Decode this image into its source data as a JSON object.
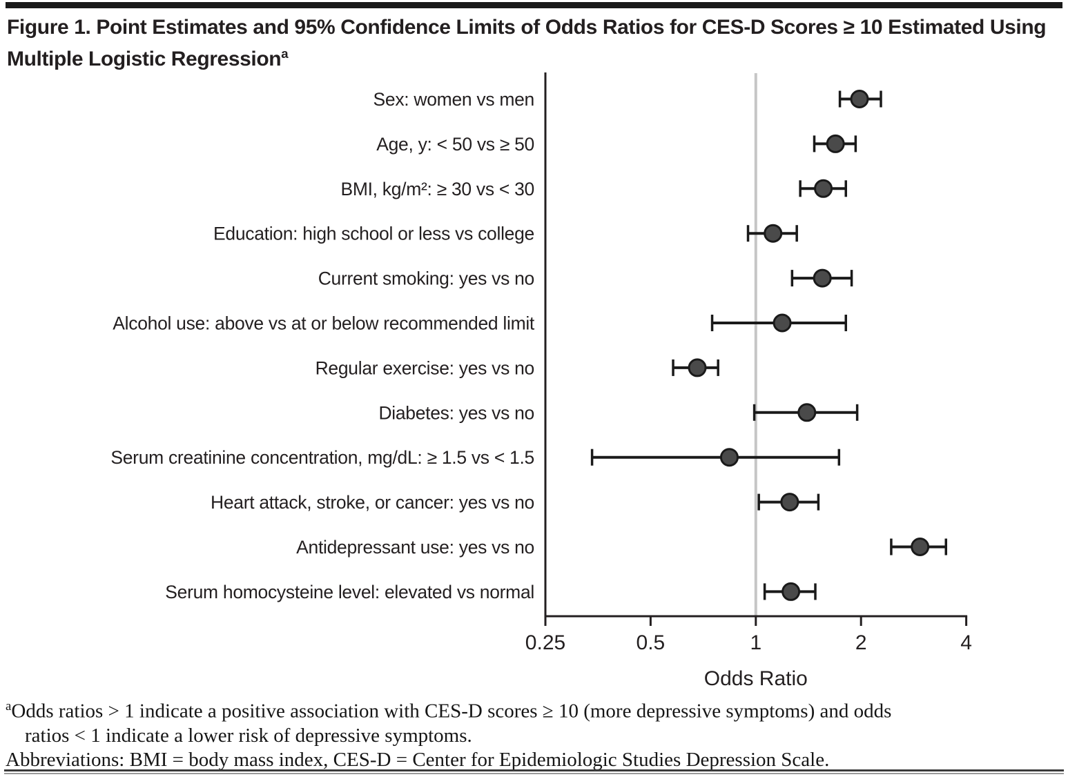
{
  "figure": {
    "title_line1": "Figure 1. Point Estimates and 95% Confidence Limits of Odds Ratios for CES-D Scores ≥ 10",
    "title_line2": "Estimated Using Multiple Logistic Regression",
    "title_superscript": "a"
  },
  "chart_data": {
    "type": "scatter",
    "subtype": "forest-plot",
    "title": "Point Estimates and 95% Confidence Limits of Odds Ratios for CES-D Scores ≥ 10 Estimated Using Multiple Logistic Regression",
    "xlabel": "Odds Ratio",
    "x_scale": "log",
    "xlim": [
      0.25,
      4
    ],
    "x_ticks": [
      0.25,
      0.5,
      1,
      2,
      4
    ],
    "x_tick_labels": [
      "0.25",
      "0.5",
      "1",
      "2",
      "4"
    ],
    "reference_line": 1,
    "grid": "off",
    "legend": "none",
    "rows": [
      {
        "label": "Sex: women vs men",
        "or": 1.98,
        "ci_low": 1.74,
        "ci_high": 2.28
      },
      {
        "label": "Age, y: < 50 vs ≥ 50",
        "or": 1.69,
        "ci_low": 1.47,
        "ci_high": 1.93
      },
      {
        "label": "BMI, kg/m²: ≥ 30 vs < 30",
        "or": 1.56,
        "ci_low": 1.34,
        "ci_high": 1.81
      },
      {
        "label": "Education: high school or less vs college",
        "or": 1.12,
        "ci_low": 0.95,
        "ci_high": 1.31
      },
      {
        "label": "Current smoking: yes vs no",
        "or": 1.55,
        "ci_low": 1.27,
        "ci_high": 1.88
      },
      {
        "label": "Alcohol use: above vs at or below recommended limit",
        "or": 1.19,
        "ci_low": 0.75,
        "ci_high": 1.81
      },
      {
        "label": "Regular exercise: yes vs no",
        "or": 0.68,
        "ci_low": 0.58,
        "ci_high": 0.78
      },
      {
        "label": "Diabetes: yes vs no",
        "or": 1.4,
        "ci_low": 0.99,
        "ci_high": 1.95
      },
      {
        "label": "Serum creatinine concentration, mg/dL: ≥ 1.5 vs < 1.5",
        "or": 0.84,
        "ci_low": 0.34,
        "ci_high": 1.73
      },
      {
        "label": "Heart attack, stroke, or cancer: yes vs no",
        "or": 1.25,
        "ci_low": 1.02,
        "ci_high": 1.51
      },
      {
        "label": "Antidepressant use: yes vs no",
        "or": 2.95,
        "ci_low": 2.44,
        "ci_high": 3.5
      },
      {
        "label": "Serum homocysteine level: elevated vs normal",
        "or": 1.26,
        "ci_low": 1.06,
        "ci_high": 1.48
      }
    ]
  },
  "footnotes": {
    "marker": "a",
    "line1": "Odds ratios > 1 indicate a positive association with CES-D scores ≥ 10 (more depressive symptoms) and odds",
    "line2": "ratios < 1 indicate a lower risk of depressive symptoms.",
    "abbreviations": "Abbreviations: BMI = body mass index, CES-D = Center for Epidemiologic Studies Depression Scale."
  },
  "colors": {
    "marker_fill": "#4a4a4a",
    "marker_stroke": "#1a1a1a",
    "error_bar": "#1a1a1a",
    "reference_line": "#c6c6c6",
    "axis": "#231f20",
    "text": "#231f20",
    "top_bar": "#1a1a1a",
    "bottom_rule": "#3a3a3a"
  }
}
